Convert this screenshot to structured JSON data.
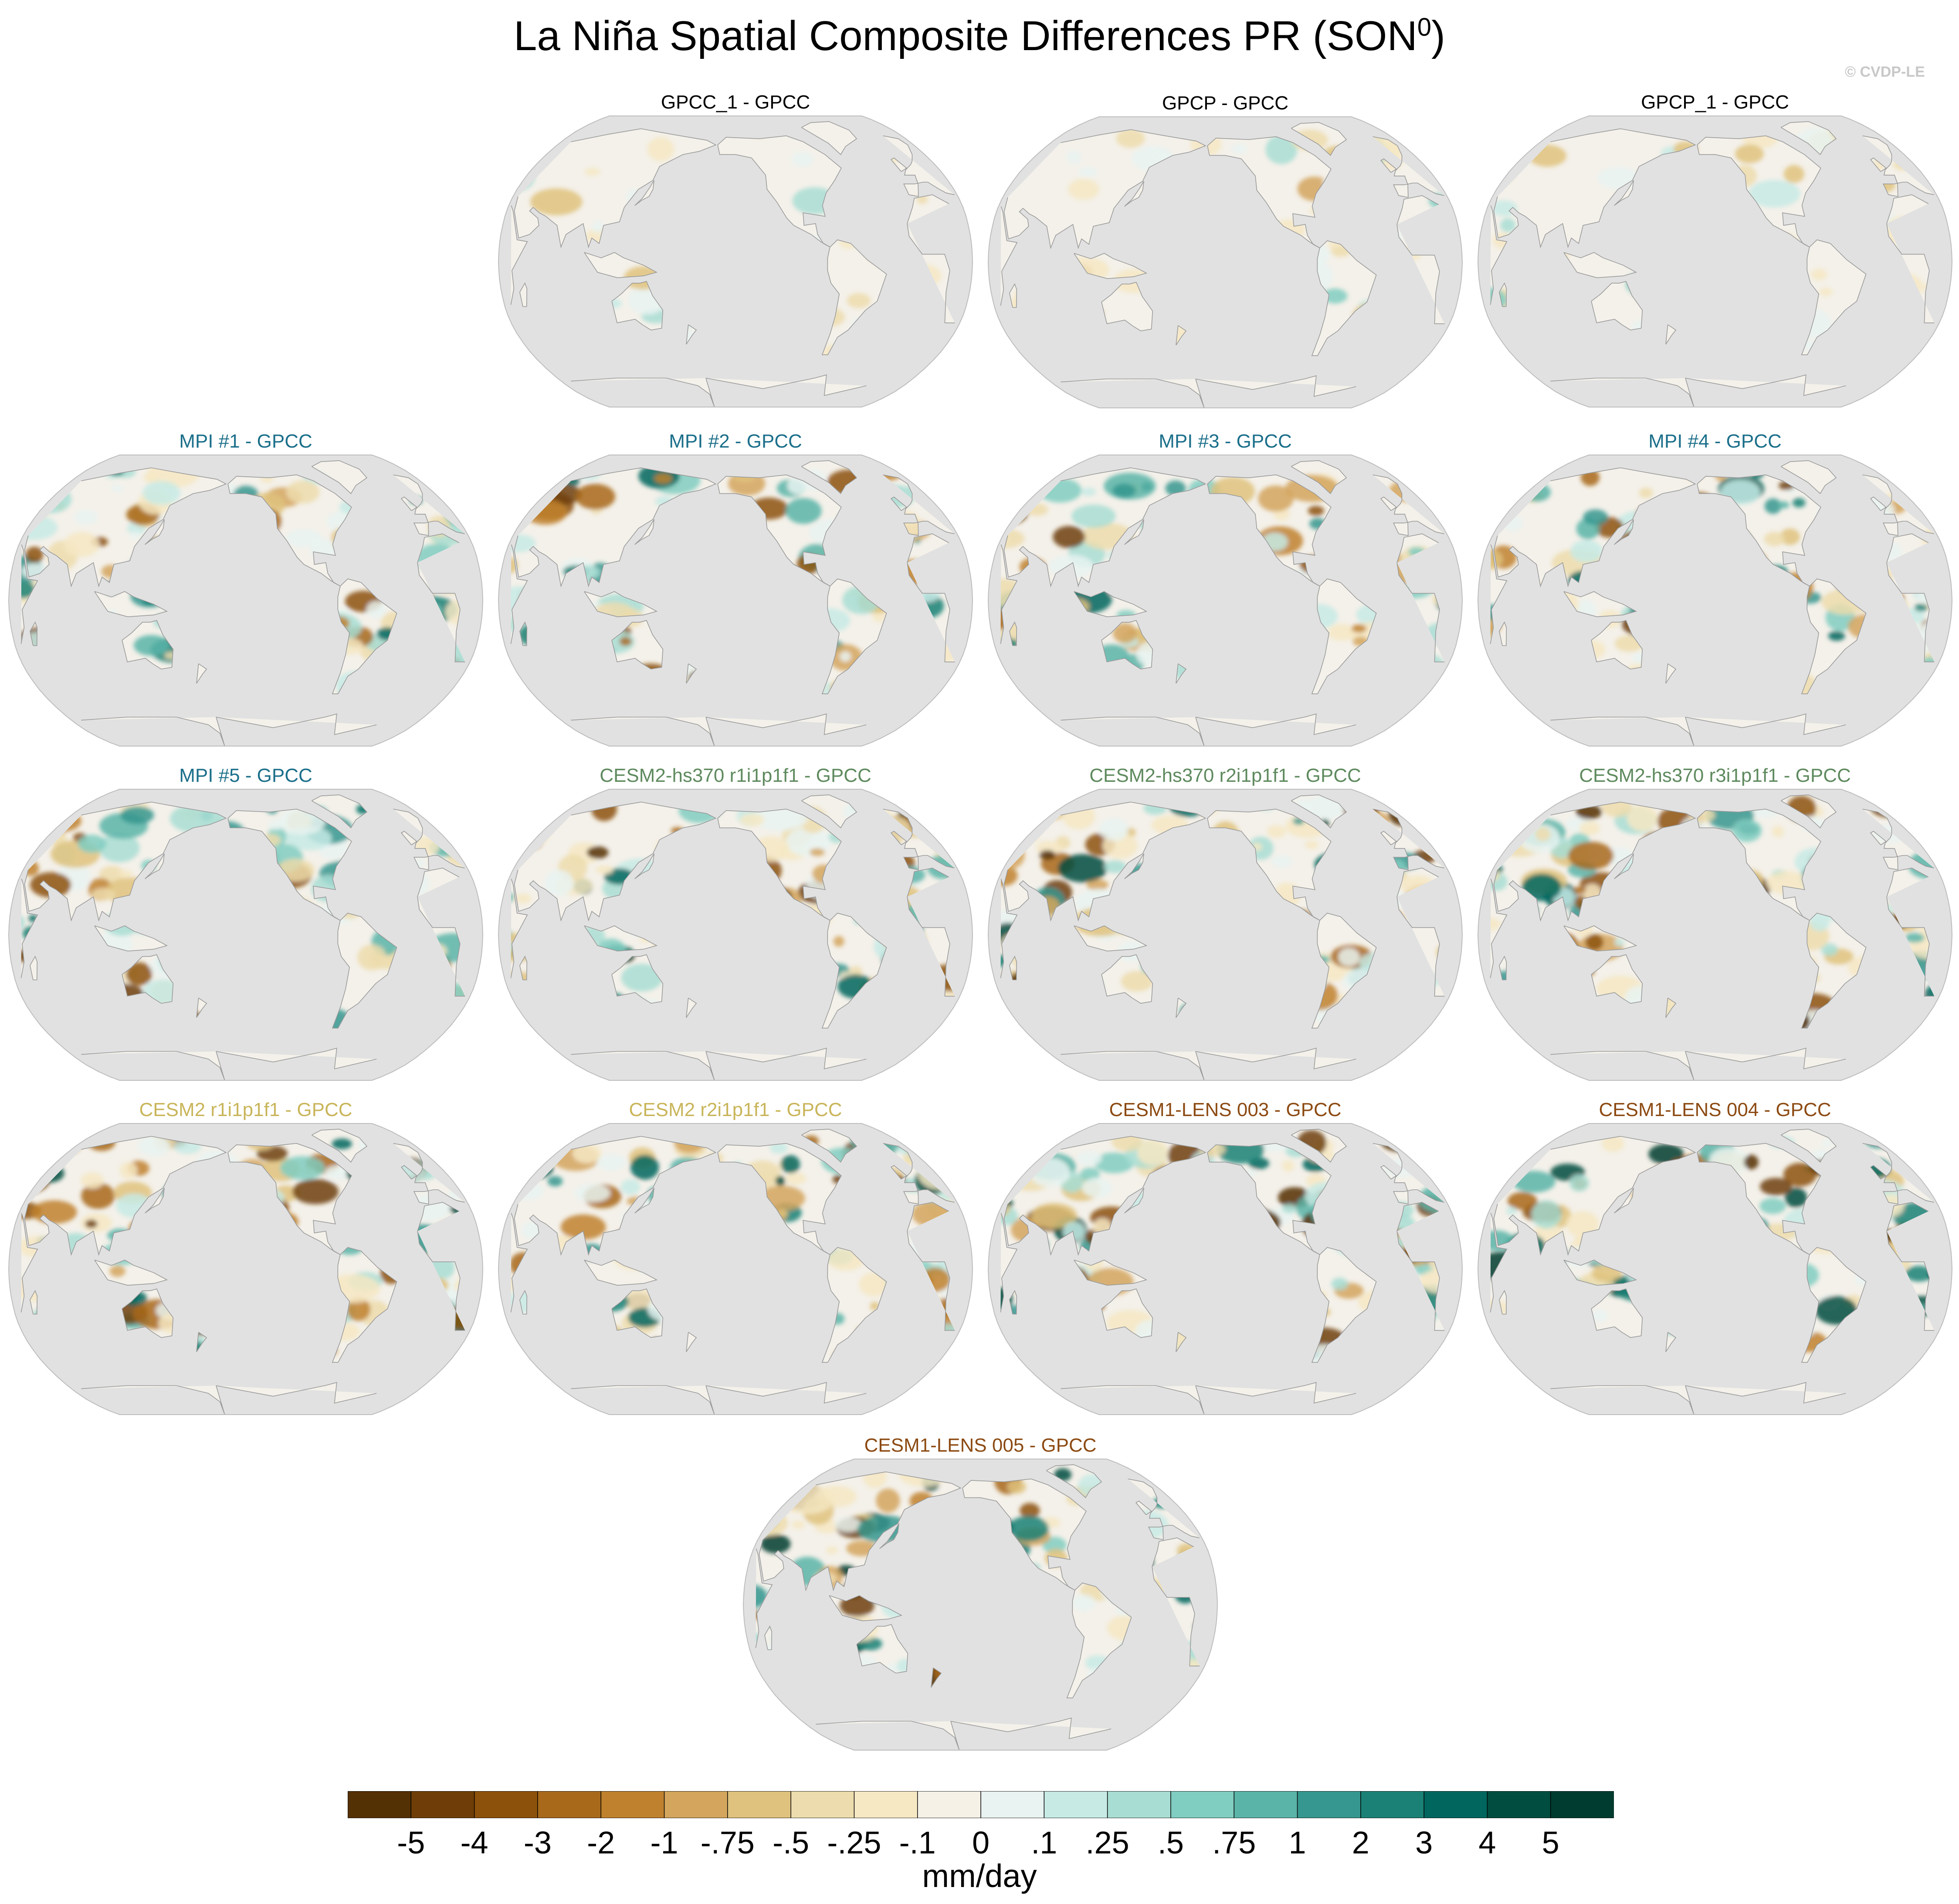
{
  "figure": {
    "title": "La Niña Spatial Composite Differences PR (SON",
    "title_sup": "0",
    "title_close": ")",
    "credit": "© CVDP-LE"
  },
  "panels": [
    {
      "title": "GPCC_1 - GPCC",
      "color": "#000000",
      "amplitude": 0.35,
      "seed": 11
    },
    {
      "title": "GPCP - GPCC",
      "color": "#000000",
      "amplitude": 0.5,
      "seed": 12
    },
    {
      "title": "GPCP_1 - GPCC",
      "color": "#000000",
      "amplitude": 0.45,
      "seed": 13
    },
    {
      "title": "MPI #1 - GPCC",
      "color": "#1b6f8a",
      "amplitude": 1.0,
      "seed": 21
    },
    {
      "title": "MPI #2 - GPCC",
      "color": "#1b6f8a",
      "amplitude": 1.0,
      "seed": 22
    },
    {
      "title": "MPI #3 - GPCC",
      "color": "#1b6f8a",
      "amplitude": 1.0,
      "seed": 23
    },
    {
      "title": "MPI #4 - GPCC",
      "color": "#1b6f8a",
      "amplitude": 1.0,
      "seed": 24
    },
    {
      "title": "MPI #5 - GPCC",
      "color": "#1b6f8a",
      "amplitude": 1.0,
      "seed": 25
    },
    {
      "title": "CESM2-hs370 r1i1p1f1 - GPCC",
      "color": "#5e8a5e",
      "amplitude": 1.1,
      "seed": 31
    },
    {
      "title": "CESM2-hs370 r2i1p1f1 - GPCC",
      "color": "#5e8a5e",
      "amplitude": 1.1,
      "seed": 32
    },
    {
      "title": "CESM2-hs370 r3i1p1f1 - GPCC",
      "color": "#5e8a5e",
      "amplitude": 1.1,
      "seed": 33
    },
    {
      "title": "CESM2 r1i1p1f1 - GPCC",
      "color": "#c9b55a",
      "amplitude": 1.1,
      "seed": 41
    },
    {
      "title": "CESM2 r2i1p1f1 - GPCC",
      "color": "#c9b55a",
      "amplitude": 1.1,
      "seed": 42
    },
    {
      "title": "CESM1-LENS 003 - GPCC",
      "color": "#8c4a12",
      "amplitude": 1.2,
      "seed": 51
    },
    {
      "title": "CESM1-LENS 004 - GPCC",
      "color": "#8c4a12",
      "amplitude": 1.2,
      "seed": 52
    },
    {
      "title": "CESM1-LENS 005 - GPCC",
      "color": "#8c4a12",
      "amplitude": 1.2,
      "seed": 53
    }
  ],
  "colorbar": {
    "labels": [
      "-5",
      "-4",
      "-3",
      "-2",
      "-1",
      "-.75",
      "-.5",
      "-.25",
      "-.1",
      "0",
      ".1",
      ".25",
      ".5",
      ".75",
      "1",
      "2",
      "3",
      "4",
      "5"
    ],
    "colors": [
      "#543005",
      "#6f3e08",
      "#8c510a",
      "#a8691b",
      "#bf812d",
      "#d3a55d",
      "#dfc27d",
      "#eddcad",
      "#f6e8c3",
      "#f5f1e7",
      "#e9f3f1",
      "#c7eae5",
      "#a8ddd3",
      "#80cdc1",
      "#5ab4a8",
      "#35978f",
      "#1b8176",
      "#01665e",
      "#014d40",
      "#003c30"
    ],
    "units": "mm/day"
  },
  "map": {
    "ocean_color": "#e1e1e1",
    "land_base_color": "#f4f1ea",
    "coast_color": "#9a9a9a",
    "projection": "Robinson, Pacific-centered"
  }
}
